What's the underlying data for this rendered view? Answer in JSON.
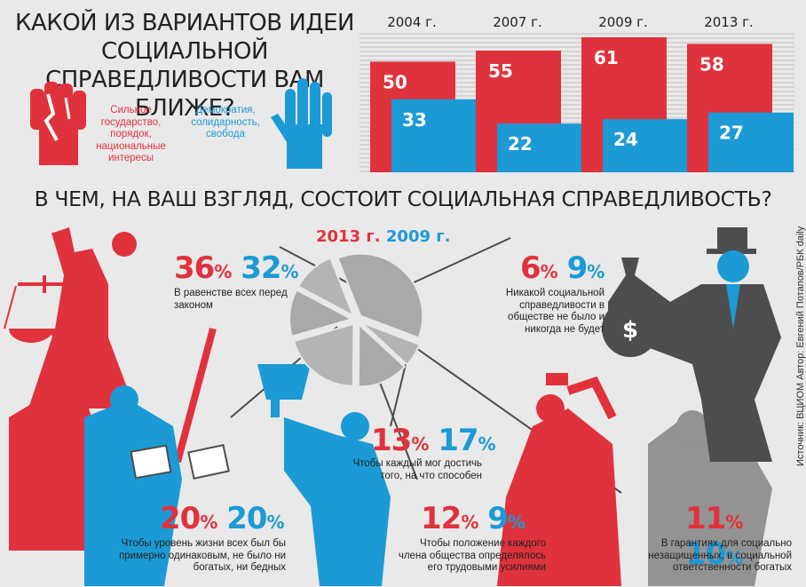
{
  "title": "КАКОЙ ИЗ ВАРИАНТОВ ИДЕИ СОЦИАЛЬНОЙ СПРАВЕДЛИВОСТИ ВАМ БЛИЖЕ?",
  "legend": {
    "red": "Сильное государство, порядок, национальные интересы",
    "blue": "Демократия, солидарность, свобода"
  },
  "question2": "В ЧЕМ, НА ВАШ ВЗГЛЯД, СОСТОИТ СОЦИАЛЬНАЯ СПРАВЕДЛИВОСТЬ?",
  "pie_legend": {
    "y2013": "2013 г.",
    "y2009": "2009 г."
  },
  "source": "Источник: ВЦИОМ    Автор: Евгений Потапов/РБК daily",
  "colors": {
    "red": "#e0323c",
    "blue": "#1b9ad6",
    "gray": "#4d4d4d",
    "bg": "#e9e9e9"
  },
  "icons": [
    "fist-icon",
    "open-hand-icon",
    "justice-statue-icon",
    "money-bag-icon",
    "trophy-icon",
    "hammer-icon"
  ],
  "chart_data": [
    {
      "type": "bar",
      "categories": [
        "2004 г.",
        "2007 г.",
        "2009 г.",
        "2013 г."
      ],
      "series": [
        {
          "name": "Сильное государство, порядок, национальные интересы",
          "values": [
            50,
            55,
            61,
            58
          ]
        },
        {
          "name": "Демократия, солидарность, свобода",
          "values": [
            33,
            22,
            24,
            27
          ]
        }
      ],
      "ylim": [
        0,
        61
      ]
    },
    {
      "type": "pie",
      "labels": [
        "В равенстве всех перед законом",
        "Никакой социальной справедливости в обществе не было и никогда не будет",
        "Чтобы каждый мог достичь того, на что способен",
        "Чтобы уровень жизни всех был бы примерно одинаковым, не было ни богатых, ни бедных",
        "Чтобы положение каждого члена общества определялось его трудовыми усилиями",
        "В гарантиях для социально незащищенных, в социальной ответственности богатых"
      ],
      "series": [
        {
          "name": "2013 г.",
          "values": [
            36,
            6,
            13,
            20,
            12,
            11
          ]
        },
        {
          "name": "2009 г.",
          "values": [
            32,
            9,
            17,
            20,
            9,
            10
          ]
        }
      ]
    }
  ]
}
